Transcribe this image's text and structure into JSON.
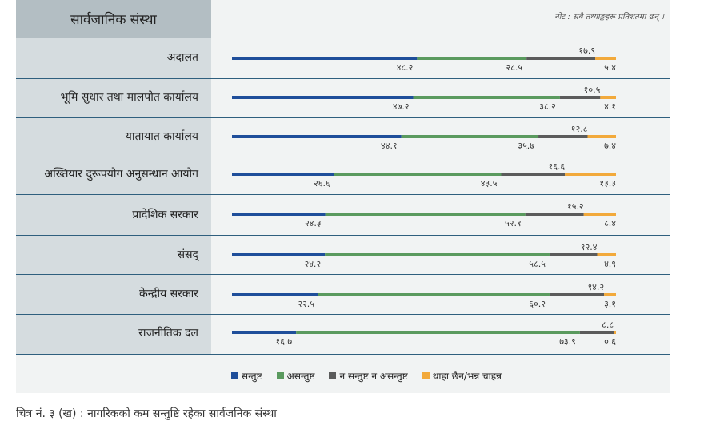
{
  "header_label": "सार्वजानिक संस्था",
  "note": "नोट : सबै तथ्याङ्कहरू प्रतिशतमा छन् ।",
  "caption": "चित्र नं. ३ (ख) : नागरिकको कम सन्तुष्टि रहेका सार्वजनिक संस्था",
  "colors": {
    "satisfied": "#1f4e9a",
    "dissatisfied": "#5a9a5e",
    "neutral": "#5b5b5b",
    "unknown": "#f2a93b"
  },
  "chart_data": {
    "type": "bar",
    "stacked": true,
    "orientation": "horizontal",
    "xlim": [
      0,
      100
    ],
    "series": [
      {
        "name": "सन्तुष्ट",
        "color": "#1f4e9a"
      },
      {
        "name": "असन्तुष्ट",
        "color": "#5a9a5e"
      },
      {
        "name": "न सन्तुष्ट न असन्तुष्ट",
        "color": "#5b5b5b"
      },
      {
        "name": "थाहा छैन/भन्न चाहन्न",
        "color": "#f2a93b"
      }
    ],
    "categories": [
      {
        "label": "अदालत",
        "values": [
          48.2,
          28.5,
          17.9,
          5.4
        ],
        "value_labels": [
          "४८.२",
          "२८.५",
          "१७.९",
          "५.४"
        ]
      },
      {
        "label": "भूमि सुधार तथा मालपोत कार्यालय",
        "values": [
          47.2,
          38.2,
          10.5,
          4.1
        ],
        "value_labels": [
          "४७.२",
          "३८.२",
          "१०.५",
          "४.१"
        ]
      },
      {
        "label": "यातायात कार्यालय",
        "values": [
          44.1,
          35.7,
          12.8,
          7.4
        ],
        "value_labels": [
          "४४.१",
          "३५.७",
          "१२.८",
          "७.४"
        ]
      },
      {
        "label": "अख्तियार दुरूपयोग अनुसन्धान आयोग",
        "values": [
          26.6,
          43.5,
          16.6,
          13.3
        ],
        "value_labels": [
          "२६.६",
          "४३.५",
          "१६.६",
          "१३.३"
        ]
      },
      {
        "label": "प्रादेशिक सरकार",
        "values": [
          24.3,
          52.1,
          15.2,
          8.4
        ],
        "value_labels": [
          "२४.३",
          "५२.१",
          "१५.२",
          "८.४"
        ]
      },
      {
        "label": "संसद्",
        "values": [
          24.2,
          58.5,
          12.4,
          4.9
        ],
        "value_labels": [
          "२४.२",
          "५८.५",
          "१२.४",
          "४.९"
        ]
      },
      {
        "label": "केन्द्रीय सरकार",
        "values": [
          22.5,
          60.2,
          14.2,
          3.1
        ],
        "value_labels": [
          "२२.५",
          "६०.२",
          "१४.२",
          "३.१"
        ]
      },
      {
        "label": "राजनीतिक दल",
        "values": [
          16.7,
          73.9,
          8.8,
          0.6
        ],
        "value_labels": [
          "१६.७",
          "७३.९",
          "८.८",
          "०.६"
        ]
      }
    ]
  }
}
